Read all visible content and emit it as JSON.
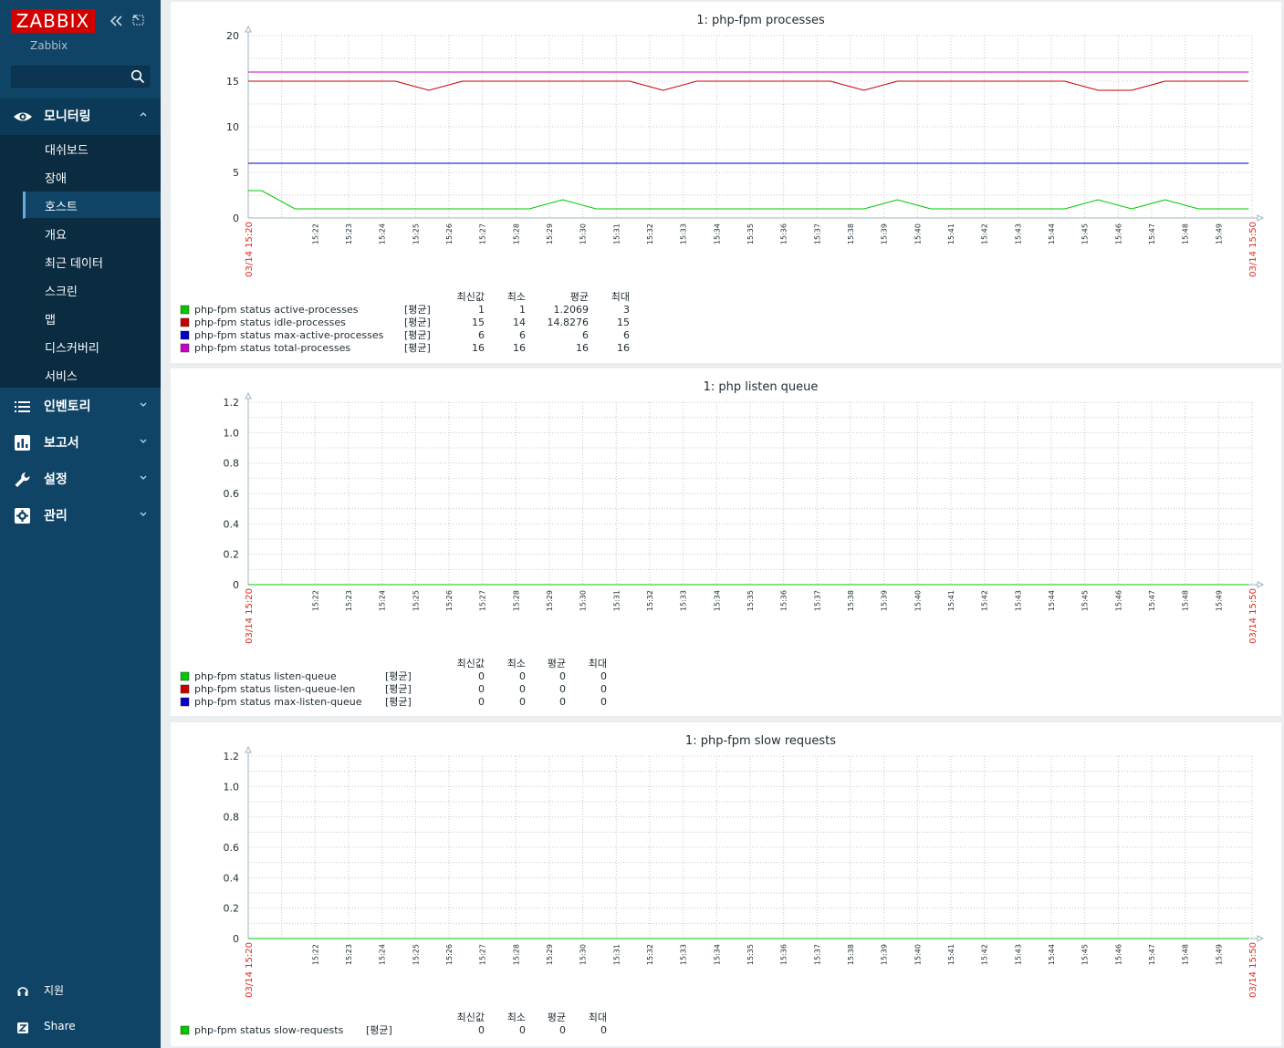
{
  "sidebar": {
    "logo": "ZABBIX",
    "server_name": "Zabbix",
    "search": {
      "value": "",
      "placeholder": ""
    },
    "menu": [
      {
        "label": "모니터링",
        "icon": "eye-icon",
        "expanded": true
      },
      {
        "label": "인벤토리",
        "icon": "list-icon"
      },
      {
        "label": "보고서",
        "icon": "bar-chart-icon"
      },
      {
        "label": "설정",
        "icon": "wrench-icon"
      },
      {
        "label": "관리",
        "icon": "gear-icon"
      }
    ],
    "submenu": [
      "대쉬보드",
      "장애",
      "호스트",
      "개요",
      "최근 데이터",
      "스크린",
      "맵",
      "디스커버리",
      "서비스"
    ],
    "submenu_selected": "호스트",
    "bottom": [
      {
        "label": "지원",
        "icon": "headset-icon"
      },
      {
        "label": "Share",
        "icon": "share-icon"
      }
    ]
  },
  "chart_data": [
    {
      "type": "line",
      "title": "1: php-fpm processes",
      "ylim": [
        0,
        20
      ],
      "yticks": [
        "20",
        "15",
        "10",
        "5",
        "0"
      ],
      "x_start_label": "03/14 15:20",
      "x_end_label": "03/14 15:50",
      "x_tick_labels": [
        "15:22",
        "15:23",
        "15:24",
        "15:25",
        "15:26",
        "15:27",
        "15:28",
        "15:29",
        "15:30",
        "15:31",
        "15:32",
        "15:33",
        "15:34",
        "15:35",
        "15:36",
        "15:37",
        "15:38",
        "15:39",
        "15:40",
        "15:41",
        "15:42",
        "15:43",
        "15:44",
        "15:45",
        "15:46",
        "15:47",
        "15:48",
        "15:49"
      ],
      "legend_headers": [
        "최신값",
        "최소",
        "평균",
        "최대"
      ],
      "series": [
        {
          "name": "php-fpm status active-processes",
          "func": "[평균]",
          "color": "#00c800",
          "last": "1",
          "min": "1",
          "avg": "1.2069",
          "max": "3",
          "points": [
            [
              0,
              3
            ],
            [
              0.4,
              3
            ],
            [
              1.4,
              1
            ],
            [
              8.4,
              1
            ],
            [
              9.4,
              2
            ],
            [
              10.4,
              1
            ],
            [
              18.4,
              1
            ],
            [
              19.4,
              2
            ],
            [
              20.4,
              1
            ],
            [
              24.4,
              1
            ],
            [
              25.4,
              2
            ],
            [
              26.4,
              1
            ],
            [
              27.4,
              2
            ],
            [
              28.4,
              1
            ],
            [
              29.9,
              1
            ]
          ]
        },
        {
          "name": "php-fpm status idle-processes",
          "func": "[평균]",
          "color": "#c80000",
          "last": "15",
          "min": "14",
          "avg": "14.8276",
          "max": "15",
          "points": [
            [
              0,
              15
            ],
            [
              4.4,
              15
            ],
            [
              5.4,
              14
            ],
            [
              6.4,
              15
            ],
            [
              11.4,
              15
            ],
            [
              12.4,
              14
            ],
            [
              13.4,
              15
            ],
            [
              17.4,
              15
            ],
            [
              18.4,
              14
            ],
            [
              19.4,
              15
            ],
            [
              24.4,
              15
            ],
            [
              25.4,
              14
            ],
            [
              26.4,
              14
            ],
            [
              27.4,
              15
            ],
            [
              29.9,
              15
            ]
          ]
        },
        {
          "name": "php-fpm status max-active-processes",
          "func": "[평균]",
          "color": "#0000c8",
          "last": "6",
          "min": "6",
          "avg": "6",
          "max": "6",
          "points": [
            [
              0,
              6
            ],
            [
              29.9,
              6
            ]
          ]
        },
        {
          "name": "php-fpm status total-processes",
          "func": "[평균]",
          "color": "#c800c8",
          "last": "16",
          "min": "16",
          "avg": "16",
          "max": "16",
          "points": [
            [
              0,
              16
            ],
            [
              29.9,
              16
            ]
          ]
        }
      ]
    },
    {
      "type": "line",
      "title": "1: php listen queue",
      "ylim": [
        0,
        1.2
      ],
      "yticks": [
        "1.2",
        "1.0",
        "0.8",
        "0.6",
        "0.4",
        "0.2",
        "0"
      ],
      "x_start_label": "03/14 15:20",
      "x_end_label": "03/14 15:50",
      "x_tick_labels": [
        "15:22",
        "15:23",
        "15:24",
        "15:25",
        "15:26",
        "15:27",
        "15:28",
        "15:29",
        "15:30",
        "15:31",
        "15:32",
        "15:33",
        "15:34",
        "15:35",
        "15:36",
        "15:37",
        "15:38",
        "15:39",
        "15:40",
        "15:41",
        "15:42",
        "15:43",
        "15:44",
        "15:45",
        "15:46",
        "15:47",
        "15:48",
        "15:49"
      ],
      "legend_headers": [
        "최신값",
        "최소",
        "평균",
        "최대"
      ],
      "series": [
        {
          "name": "php-fpm status listen-queue",
          "func": "[평균]",
          "color": "#00c800",
          "last": "0",
          "min": "0",
          "avg": "0",
          "max": "0",
          "points": [
            [
              0,
              0
            ],
            [
              29.9,
              0
            ]
          ]
        },
        {
          "name": "php-fpm status listen-queue-len",
          "func": "[평균]",
          "color": "#c80000",
          "last": "0",
          "min": "0",
          "avg": "0",
          "max": "0",
          "points": [
            [
              0,
              0
            ],
            [
              29.9,
              0
            ]
          ]
        },
        {
          "name": "php-fpm status max-listen-queue",
          "func": "[평균]",
          "color": "#0000c8",
          "last": "0",
          "min": "0",
          "avg": "0",
          "max": "0",
          "points": [
            [
              0,
              0
            ],
            [
              29.9,
              0
            ]
          ]
        }
      ]
    },
    {
      "type": "line",
      "title": "1: php-fpm slow requests",
      "ylim": [
        0,
        1.2
      ],
      "yticks": [
        "1.2",
        "1.0",
        "0.8",
        "0.6",
        "0.4",
        "0.2",
        "0"
      ],
      "x_start_label": "03/14 15:20",
      "x_end_label": "03/14 15:50",
      "x_tick_labels": [
        "15:22",
        "15:23",
        "15:24",
        "15:25",
        "15:26",
        "15:27",
        "15:28",
        "15:29",
        "15:30",
        "15:31",
        "15:32",
        "15:33",
        "15:34",
        "15:35",
        "15:36",
        "15:37",
        "15:38",
        "15:39",
        "15:40",
        "15:41",
        "15:42",
        "15:43",
        "15:44",
        "15:45",
        "15:46",
        "15:47",
        "15:48",
        "15:49"
      ],
      "legend_headers": [
        "최신값",
        "최소",
        "평균",
        "최대"
      ],
      "series": [
        {
          "name": "php-fpm status slow-requests",
          "func": "[평균]",
          "color": "#00c800",
          "last": "0",
          "min": "0",
          "avg": "0",
          "max": "0",
          "points": [
            [
              0,
              0
            ],
            [
              29.9,
              0
            ]
          ]
        }
      ]
    }
  ]
}
